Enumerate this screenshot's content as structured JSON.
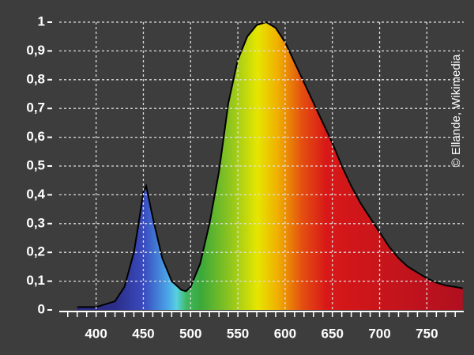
{
  "chart_data": {
    "type": "area",
    "credit": "© Ellande, Wikimedia",
    "x": [
      380,
      400,
      420,
      430,
      440,
      445,
      450,
      453,
      460,
      470,
      480,
      490,
      495,
      500,
      510,
      520,
      530,
      540,
      550,
      560,
      570,
      580,
      590,
      600,
      610,
      620,
      630,
      640,
      650,
      660,
      670,
      680,
      690,
      700,
      710,
      720,
      730,
      740,
      750,
      760,
      770,
      780,
      788
    ],
    "values": [
      0.01,
      0.01,
      0.03,
      0.08,
      0.2,
      0.3,
      0.41,
      0.43,
      0.32,
      0.18,
      0.1,
      0.07,
      0.065,
      0.08,
      0.16,
      0.3,
      0.48,
      0.72,
      0.87,
      0.95,
      0.99,
      1.0,
      0.98,
      0.93,
      0.86,
      0.79,
      0.72,
      0.65,
      0.58,
      0.5,
      0.43,
      0.37,
      0.32,
      0.27,
      0.22,
      0.18,
      0.15,
      0.13,
      0.11,
      0.095,
      0.085,
      0.08,
      0.075
    ],
    "xlim": [
      361,
      789
    ],
    "ylim": [
      0,
      1
    ],
    "xticks": [
      400,
      450,
      500,
      550,
      600,
      650,
      700,
      750
    ],
    "yticks": [
      0,
      {
        "value": 0.1,
        "label": "0,1"
      },
      {
        "value": 0.2,
        "label": "0,2"
      },
      {
        "value": 0.3,
        "label": "0,3"
      },
      {
        "value": 0.4,
        "label": "0,4"
      },
      {
        "value": 0.5,
        "label": "0,5"
      },
      {
        "value": 0.6,
        "label": "0,6"
      },
      {
        "value": 0.7,
        "label": "0,7"
      },
      {
        "value": 0.8,
        "label": "0,8"
      },
      {
        "value": 0.9,
        "label": "0,9"
      },
      1
    ],
    "grid": true
  }
}
